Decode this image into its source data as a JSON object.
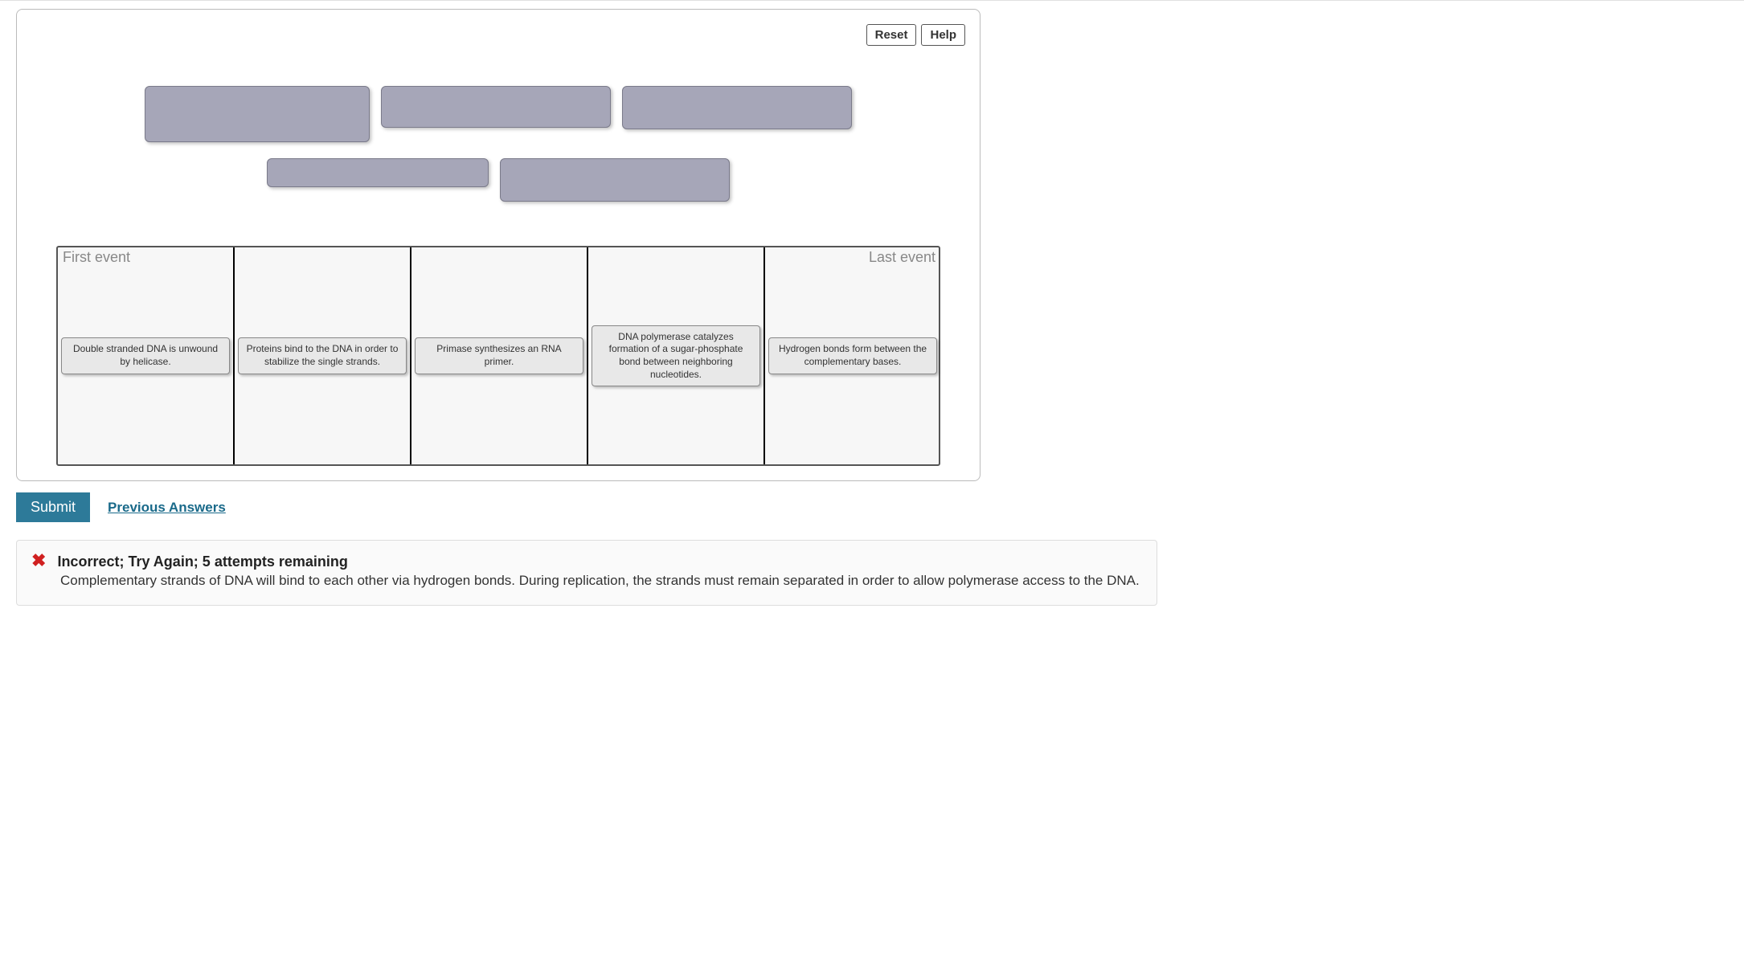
{
  "toolbar": {
    "reset_label": "Reset",
    "help_label": "Help"
  },
  "source_boxes": {
    "row1_count": 3,
    "row2_count": 2
  },
  "drop_zone": {
    "first_label": "First event",
    "last_label": "Last event",
    "slots": [
      {
        "text": "Double stranded DNA is unwound by helicase."
      },
      {
        "text": "Proteins bind to the DNA in order to stabilize the single strands."
      },
      {
        "text": "Primase synthesizes an RNA primer."
      },
      {
        "text": "DNA polymerase catalyzes formation of a sugar-phosphate bond between neighboring nucleotides."
      },
      {
        "text": "Hydrogen bonds form between the complementary bases."
      }
    ]
  },
  "actions": {
    "submit_label": "Submit",
    "previous_label": "Previous Answers"
  },
  "feedback": {
    "icon": "✖",
    "title": "Incorrect; Try Again; 5 attempts remaining",
    "body": "Complementary strands of DNA will bind to each other via hydrogen bonds. During replication, the strands must remain separated in order to allow polymerase access to the DNA."
  },
  "colors": {
    "panel_border": "#bbbbbb",
    "source_fill": "#a6a6b8",
    "source_border": "#7a7a8a",
    "dropgrid_border": "#555555",
    "dropgrid_bg": "#f7f7f7",
    "slot_divider": "#000000",
    "card_bg": "#e8e8e8",
    "card_border": "#888888",
    "submit_bg": "#2d7a99",
    "link_color": "#1a6a8a",
    "feedback_bg": "#fafafa",
    "feedback_border": "#dddddd",
    "error_red": "#d02020",
    "label_grey": "#888888"
  }
}
